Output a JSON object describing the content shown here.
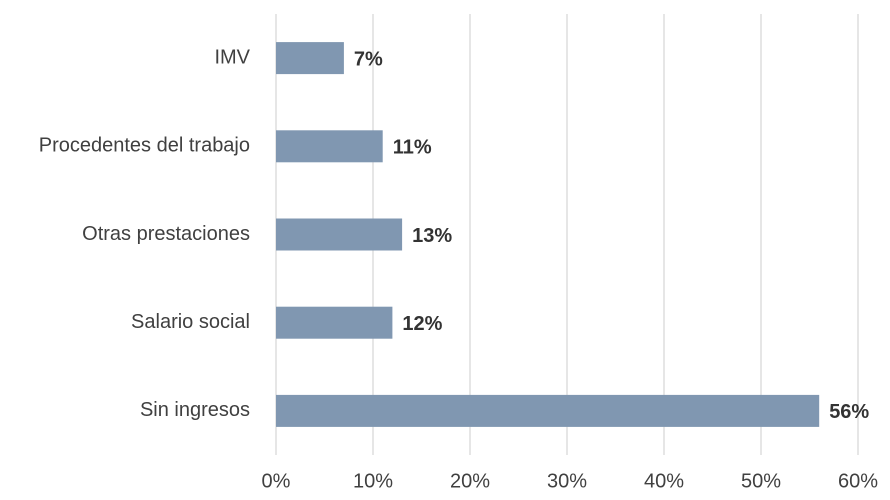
{
  "chart_data": {
    "type": "bar",
    "orientation": "horizontal",
    "categories": [
      "IMV",
      "Procedentes del trabajo",
      "Otras prestaciones",
      "Salario social",
      "Sin ingresos"
    ],
    "values": [
      7,
      11,
      13,
      12,
      56
    ],
    "value_labels": [
      "7%",
      "11%",
      "13%",
      "12%",
      "56%"
    ],
    "color": "#8097b1",
    "xlim": [
      0,
      60
    ],
    "xticks": [
      {
        "value": 0,
        "label": "0%"
      },
      {
        "value": 10,
        "label": "10%"
      },
      {
        "value": 20,
        "label": "20%"
      },
      {
        "value": 30,
        "label": "30%"
      },
      {
        "value": 40,
        "label": "40%"
      },
      {
        "value": 50,
        "label": "50%"
      },
      {
        "value": 60,
        "label": "60%"
      }
    ],
    "grid": true
  }
}
